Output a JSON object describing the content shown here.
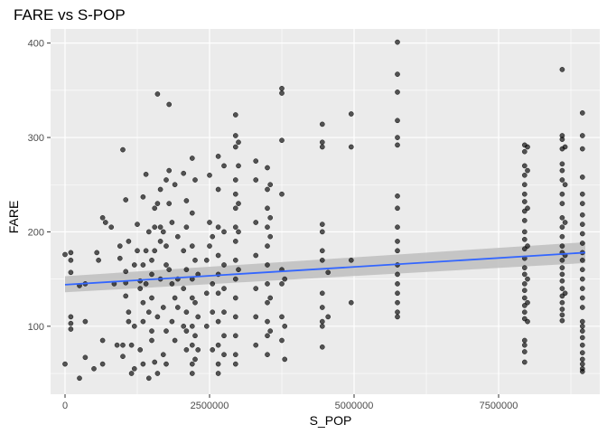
{
  "chart_data": {
    "type": "scatter",
    "title": "FARE vs S-POP",
    "xlabel": "S_POP",
    "ylabel": "FARE",
    "xlim": [
      -250000,
      9250000
    ],
    "ylim": [
      28,
      415
    ],
    "x_ticks": [
      0,
      2500000,
      5000000,
      7500000
    ],
    "x_tick_labels": [
      "0",
      "2500000",
      "5000000",
      "7500000"
    ],
    "y_ticks": [
      100,
      200,
      300,
      400
    ],
    "y_tick_labels": [
      "100",
      "200",
      "300",
      "400"
    ],
    "grid": true,
    "legend": "none",
    "colors": {
      "panel": "#ebebeb",
      "grid": "#ffffff",
      "points": "#000000",
      "trend_line": "#3366ff",
      "confidence_band": "#bebebe"
    },
    "trend_line": {
      "method": "linear",
      "x": [
        0,
        9000000
      ],
      "y": [
        144,
        178
      ],
      "band_lower": [
        136,
        167
      ],
      "band_upper": [
        153,
        189
      ]
    },
    "points": [
      [
        0,
        60
      ],
      [
        0,
        176
      ],
      [
        100000,
        178
      ],
      [
        100000,
        170
      ],
      [
        100000,
        157
      ],
      [
        100000,
        110
      ],
      [
        100000,
        103
      ],
      [
        100000,
        97
      ],
      [
        250000,
        45
      ],
      [
        250000,
        143
      ],
      [
        350000,
        67
      ],
      [
        350000,
        105
      ],
      [
        350000,
        145
      ],
      [
        500000,
        55
      ],
      [
        550000,
        178
      ],
      [
        580000,
        170
      ],
      [
        650000,
        85
      ],
      [
        650000,
        60
      ],
      [
        650000,
        215
      ],
      [
        700000,
        210
      ],
      [
        800000,
        205
      ],
      [
        850000,
        145
      ],
      [
        900000,
        80
      ],
      [
        950000,
        185
      ],
      [
        950000,
        172
      ],
      [
        1000000,
        287
      ],
      [
        1000000,
        80
      ],
      [
        1000000,
        68
      ],
      [
        1050000,
        234
      ],
      [
        1050000,
        158
      ],
      [
        1050000,
        146
      ],
      [
        1050000,
        132
      ],
      [
        1100000,
        190
      ],
      [
        1100000,
        115
      ],
      [
        1100000,
        105
      ],
      [
        1150000,
        80
      ],
      [
        1150000,
        50
      ],
      [
        1200000,
        165
      ],
      [
        1200000,
        100
      ],
      [
        1200000,
        55
      ],
      [
        1250000,
        208
      ],
      [
        1250000,
        180
      ],
      [
        1300000,
        148
      ],
      [
        1300000,
        140
      ],
      [
        1300000,
        75
      ],
      [
        1350000,
        237
      ],
      [
        1350000,
        165
      ],
      [
        1350000,
        125
      ],
      [
        1350000,
        105
      ],
      [
        1350000,
        60
      ],
      [
        1400000,
        261
      ],
      [
        1400000,
        180
      ],
      [
        1400000,
        145
      ],
      [
        1450000,
        200
      ],
      [
        1450000,
        115
      ],
      [
        1450000,
        45
      ],
      [
        1500000,
        170
      ],
      [
        1500000,
        155
      ],
      [
        1500000,
        130
      ],
      [
        1500000,
        95
      ],
      [
        1500000,
        85
      ],
      [
        1550000,
        225
      ],
      [
        1550000,
        205
      ],
      [
        1550000,
        180
      ],
      [
        1550000,
        62
      ],
      [
        1600000,
        346
      ],
      [
        1600000,
        230
      ],
      [
        1600000,
        110
      ],
      [
        1600000,
        50
      ],
      [
        1650000,
        245
      ],
      [
        1650000,
        205
      ],
      [
        1650000,
        190
      ],
      [
        1650000,
        150
      ],
      [
        1700000,
        200
      ],
      [
        1700000,
        120
      ],
      [
        1700000,
        70
      ],
      [
        1750000,
        255
      ],
      [
        1750000,
        185
      ],
      [
        1750000,
        165
      ],
      [
        1750000,
        95
      ],
      [
        1750000,
        60
      ],
      [
        1800000,
        335
      ],
      [
        1800000,
        265
      ],
      [
        1800000,
        230
      ],
      [
        1800000,
        160
      ],
      [
        1850000,
        210
      ],
      [
        1850000,
        145
      ],
      [
        1850000,
        105
      ],
      [
        1900000,
        250
      ],
      [
        1900000,
        130
      ],
      [
        1900000,
        85
      ],
      [
        1950000,
        195
      ],
      [
        1950000,
        150
      ],
      [
        1950000,
        120
      ],
      [
        2050000,
        262
      ],
      [
        2050000,
        180
      ],
      [
        2050000,
        140
      ],
      [
        2050000,
        100
      ],
      [
        2100000,
        233
      ],
      [
        2100000,
        205
      ],
      [
        2100000,
        160
      ],
      [
        2100000,
        115
      ],
      [
        2100000,
        95
      ],
      [
        2100000,
        75
      ],
      [
        2200000,
        278
      ],
      [
        2200000,
        220
      ],
      [
        2200000,
        185
      ],
      [
        2200000,
        150
      ],
      [
        2200000,
        130
      ],
      [
        2200000,
        100
      ],
      [
        2200000,
        80
      ],
      [
        2200000,
        60
      ],
      [
        2200000,
        50
      ],
      [
        2250000,
        255
      ],
      [
        2250000,
        170
      ],
      [
        2250000,
        125
      ],
      [
        2250000,
        90
      ],
      [
        2250000,
        65
      ],
      [
        2300000,
        155
      ],
      [
        2300000,
        110
      ],
      [
        2300000,
        75
      ],
      [
        2450000,
        170
      ],
      [
        2450000,
        135
      ],
      [
        2450000,
        100
      ],
      [
        2500000,
        260
      ],
      [
        2500000,
        210
      ],
      [
        2500000,
        185
      ],
      [
        2550000,
        195
      ],
      [
        2550000,
        145
      ],
      [
        2550000,
        115
      ],
      [
        2550000,
        75
      ],
      [
        2650000,
        280
      ],
      [
        2650000,
        245
      ],
      [
        2650000,
        205
      ],
      [
        2650000,
        175
      ],
      [
        2650000,
        155
      ],
      [
        2650000,
        135
      ],
      [
        2650000,
        105
      ],
      [
        2650000,
        80
      ],
      [
        2650000,
        60
      ],
      [
        2650000,
        50
      ],
      [
        2750000,
        270
      ],
      [
        2750000,
        200
      ],
      [
        2750000,
        165
      ],
      [
        2750000,
        140
      ],
      [
        2750000,
        115
      ],
      [
        2750000,
        90
      ],
      [
        2750000,
        70
      ],
      [
        2950000,
        324
      ],
      [
        2950000,
        302
      ],
      [
        2950000,
        290
      ],
      [
        2950000,
        255
      ],
      [
        2950000,
        240
      ],
      [
        2950000,
        225
      ],
      [
        2950000,
        205
      ],
      [
        2950000,
        190
      ],
      [
        2950000,
        170
      ],
      [
        2950000,
        150
      ],
      [
        2950000,
        130
      ],
      [
        2950000,
        110
      ],
      [
        2950000,
        90
      ],
      [
        2950000,
        70
      ],
      [
        2950000,
        60
      ],
      [
        3000000,
        295
      ],
      [
        3000000,
        270
      ],
      [
        3000000,
        230
      ],
      [
        3000000,
        200
      ],
      [
        3000000,
        160
      ],
      [
        3300000,
        275
      ],
      [
        3300000,
        255
      ],
      [
        3300000,
        210
      ],
      [
        3300000,
        175
      ],
      [
        3300000,
        140
      ],
      [
        3300000,
        110
      ],
      [
        3300000,
        80
      ],
      [
        3500000,
        268
      ],
      [
        3500000,
        245
      ],
      [
        3500000,
        225
      ],
      [
        3500000,
        205
      ],
      [
        3500000,
        185
      ],
      [
        3500000,
        165
      ],
      [
        3500000,
        145
      ],
      [
        3500000,
        125
      ],
      [
        3500000,
        105
      ],
      [
        3500000,
        90
      ],
      [
        3500000,
        70
      ],
      [
        3550000,
        250
      ],
      [
        3550000,
        215
      ],
      [
        3550000,
        195
      ],
      [
        3550000,
        130
      ],
      [
        3550000,
        95
      ],
      [
        3750000,
        352
      ],
      [
        3750000,
        347
      ],
      [
        3750000,
        297
      ],
      [
        3750000,
        240
      ],
      [
        3750000,
        160
      ],
      [
        3750000,
        145
      ],
      [
        3750000,
        110
      ],
      [
        3750000,
        85
      ],
      [
        3800000,
        150
      ],
      [
        3800000,
        100
      ],
      [
        3800000,
        65
      ],
      [
        4450000,
        314
      ],
      [
        4450000,
        295
      ],
      [
        4450000,
        290
      ],
      [
        4450000,
        208
      ],
      [
        4450000,
        200
      ],
      [
        4450000,
        180
      ],
      [
        4450000,
        170
      ],
      [
        4450000,
        135
      ],
      [
        4450000,
        120
      ],
      [
        4450000,
        105
      ],
      [
        4450000,
        100
      ],
      [
        4450000,
        78
      ],
      [
        4550000,
        157
      ],
      [
        4550000,
        110
      ],
      [
        4950000,
        325
      ],
      [
        4950000,
        290
      ],
      [
        4950000,
        170
      ],
      [
        4950000,
        125
      ],
      [
        5750000,
        401
      ],
      [
        5750000,
        367
      ],
      [
        5750000,
        348
      ],
      [
        5750000,
        318
      ],
      [
        5750000,
        300
      ],
      [
        5750000,
        292
      ],
      [
        5750000,
        238
      ],
      [
        5750000,
        225
      ],
      [
        5750000,
        205
      ],
      [
        5750000,
        190
      ],
      [
        5750000,
        180
      ],
      [
        5750000,
        165
      ],
      [
        5750000,
        155
      ],
      [
        5750000,
        145
      ],
      [
        5750000,
        135
      ],
      [
        5750000,
        125
      ],
      [
        5750000,
        115
      ],
      [
        5750000,
        110
      ],
      [
        7950000,
        292
      ],
      [
        7950000,
        285
      ],
      [
        7950000,
        270
      ],
      [
        7950000,
        260
      ],
      [
        7950000,
        250
      ],
      [
        7950000,
        240
      ],
      [
        7950000,
        232
      ],
      [
        7950000,
        222
      ],
      [
        7950000,
        212
      ],
      [
        7950000,
        200
      ],
      [
        7950000,
        192
      ],
      [
        7950000,
        182
      ],
      [
        7950000,
        172
      ],
      [
        7950000,
        162
      ],
      [
        7950000,
        155
      ],
      [
        7950000,
        145
      ],
      [
        7950000,
        138
      ],
      [
        7950000,
        130
      ],
      [
        7950000,
        122
      ],
      [
        7950000,
        115
      ],
      [
        7950000,
        108
      ],
      [
        7950000,
        85
      ],
      [
        7950000,
        80
      ],
      [
        7950000,
        73
      ],
      [
        7950000,
        62
      ],
      [
        8000000,
        290
      ],
      [
        8000000,
        265
      ],
      [
        8000000,
        225
      ],
      [
        8000000,
        185
      ],
      [
        8000000,
        150
      ],
      [
        8000000,
        125
      ],
      [
        8000000,
        105
      ],
      [
        8600000,
        372
      ],
      [
        8600000,
        302
      ],
      [
        8600000,
        298
      ],
      [
        8600000,
        288
      ],
      [
        8600000,
        272
      ],
      [
        8600000,
        265
      ],
      [
        8600000,
        255
      ],
      [
        8600000,
        240
      ],
      [
        8600000,
        230
      ],
      [
        8600000,
        215
      ],
      [
        8600000,
        205
      ],
      [
        8600000,
        195
      ],
      [
        8600000,
        185
      ],
      [
        8600000,
        178
      ],
      [
        8600000,
        170
      ],
      [
        8600000,
        162
      ],
      [
        8600000,
        155
      ],
      [
        8600000,
        148
      ],
      [
        8600000,
        140
      ],
      [
        8600000,
        132
      ],
      [
        8600000,
        125
      ],
      [
        8600000,
        118
      ],
      [
        8600000,
        112
      ],
      [
        8600000,
        106
      ],
      [
        8650000,
        290
      ],
      [
        8650000,
        250
      ],
      [
        8650000,
        210
      ],
      [
        8650000,
        175
      ],
      [
        8650000,
        135
      ],
      [
        8950000,
        326
      ],
      [
        8950000,
        302
      ],
      [
        8950000,
        288
      ],
      [
        8950000,
        258
      ],
      [
        8950000,
        240
      ],
      [
        8950000,
        230
      ],
      [
        8950000,
        218
      ],
      [
        8950000,
        208
      ],
      [
        8950000,
        198
      ],
      [
        8950000,
        188
      ],
      [
        8950000,
        178
      ],
      [
        8950000,
        170
      ],
      [
        8950000,
        160
      ],
      [
        8950000,
        150
      ],
      [
        8950000,
        140
      ],
      [
        8950000,
        130
      ],
      [
        8950000,
        120
      ],
      [
        8950000,
        105
      ],
      [
        8950000,
        100
      ],
      [
        8950000,
        95
      ],
      [
        8950000,
        88
      ],
      [
        8950000,
        80
      ],
      [
        8950000,
        72
      ],
      [
        8950000,
        65
      ],
      [
        8950000,
        60
      ],
      [
        8950000,
        55
      ],
      [
        8950000,
        52
      ]
    ]
  }
}
